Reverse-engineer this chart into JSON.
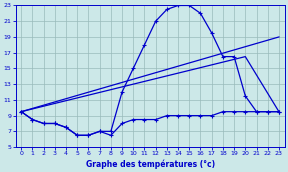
{
  "xlabel": "Graphe des températures (°c)",
  "bg_color": "#cce8e8",
  "line_color": "#0000cc",
  "grid_color": "#99bbbb",
  "xlim": [
    -0.5,
    23.5
  ],
  "ylim": [
    5,
    23
  ],
  "yticks": [
    5,
    7,
    9,
    11,
    13,
    15,
    17,
    19,
    21,
    23
  ],
  "xticks": [
    0,
    1,
    2,
    3,
    4,
    5,
    6,
    7,
    8,
    9,
    10,
    11,
    12,
    13,
    14,
    15,
    16,
    17,
    18,
    19,
    20,
    21,
    22,
    23
  ],
  "curve1_x": [
    0,
    1,
    2,
    3,
    4,
    5,
    6,
    7,
    8,
    9,
    10,
    11,
    12,
    13,
    14,
    15,
    16,
    17,
    18,
    19,
    20,
    21,
    22,
    23
  ],
  "curve1_y": [
    9.5,
    8.5,
    8.0,
    8.0,
    7.5,
    6.5,
    6.5,
    7.0,
    7.0,
    12.0,
    15.0,
    18.0,
    21.0,
    22.5,
    23.0,
    23.0,
    22.0,
    19.5,
    16.5,
    16.5,
    11.5,
    9.5,
    9.5,
    9.5
  ],
  "trend_x": [
    0,
    23
  ],
  "trend_y": [
    9.5,
    19.0
  ],
  "trend2_x": [
    0,
    20,
    23
  ],
  "trend2_y": [
    9.5,
    16.5,
    9.5
  ],
  "curve2_x": [
    0,
    1,
    2,
    3,
    4,
    5,
    6,
    7,
    8,
    9,
    10,
    11,
    12,
    13,
    14,
    15,
    16,
    17,
    18,
    19,
    20,
    21,
    22,
    23
  ],
  "curve2_y": [
    9.5,
    8.5,
    8.0,
    8.0,
    7.5,
    6.5,
    6.5,
    7.0,
    6.5,
    8.0,
    8.5,
    8.5,
    8.5,
    9.0,
    9.0,
    9.0,
    9.0,
    9.0,
    9.5,
    9.5,
    9.5,
    9.5,
    9.5,
    9.5
  ]
}
